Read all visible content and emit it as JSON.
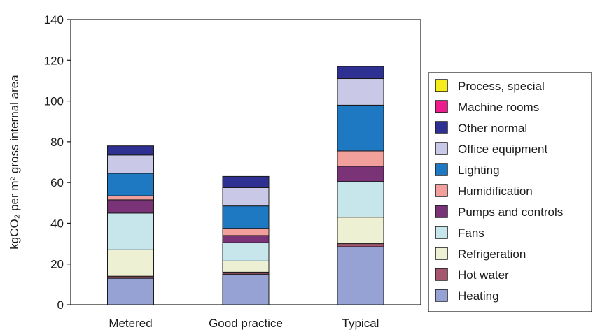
{
  "chart_data": {
    "type": "bar",
    "stacked": true,
    "title": "",
    "xlabel": "",
    "ylabel": "kgCO₂ per m² gross internal area",
    "ylim": [
      0,
      140
    ],
    "yticks": [
      0,
      20,
      40,
      60,
      80,
      100,
      120,
      140
    ],
    "grid": false,
    "legend_position": "right",
    "categories": [
      "Metered",
      "Good practice",
      "Typical"
    ],
    "series": [
      {
        "name": "Heating",
        "color": "#96a2d3",
        "values": [
          13,
          15,
          28.5
        ]
      },
      {
        "name": "Hot water",
        "color": "#a4566f",
        "values": [
          1,
          1,
          1.5
        ]
      },
      {
        "name": "Refrigeration",
        "color": "#edf0d2",
        "values": [
          13,
          5.5,
          13
        ]
      },
      {
        "name": "Fans",
        "color": "#c6e6ec",
        "values": [
          18,
          9,
          17.5
        ]
      },
      {
        "name": "Pumps and controls",
        "color": "#7b3378",
        "values": [
          6.5,
          3.5,
          7.5
        ]
      },
      {
        "name": "Humidification",
        "color": "#f2a09b",
        "values": [
          2,
          3.5,
          7.5
        ]
      },
      {
        "name": "Lighting",
        "color": "#1e78c2",
        "values": [
          11,
          11,
          22.5
        ]
      },
      {
        "name": "Office equipment",
        "color": "#c9c8e6",
        "values": [
          9,
          9,
          13
        ]
      },
      {
        "name": "Other normal",
        "color": "#2e3192",
        "values": [
          4.5,
          5.5,
          6
        ]
      },
      {
        "name": "Machine rooms",
        "color": "#ec1d8c",
        "values": [
          0,
          0,
          0
        ]
      },
      {
        "name": "Process, special",
        "color": "#f7ec1b",
        "values": [
          0,
          0,
          0
        ]
      }
    ],
    "legend_order": [
      "Process, special",
      "Machine rooms",
      "Other normal",
      "Office equipment",
      "Lighting",
      "Humidification",
      "Pumps and controls",
      "Fans",
      "Refrigeration",
      "Hot water",
      "Heating"
    ]
  }
}
